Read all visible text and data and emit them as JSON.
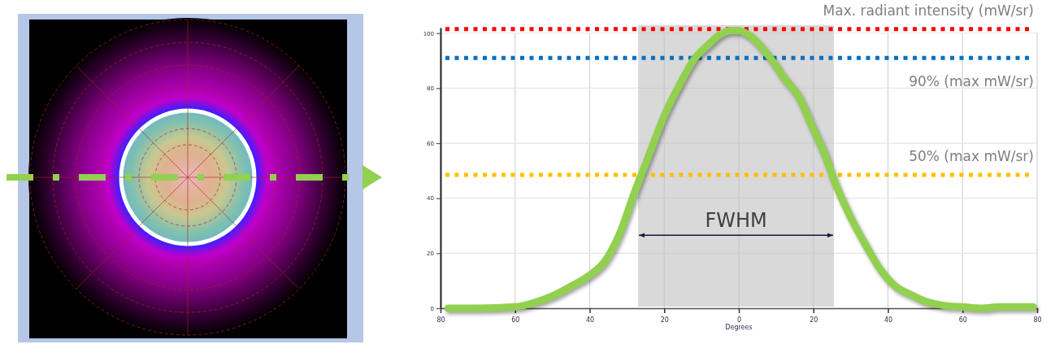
{
  "chart_data": {
    "type": "line",
    "x": [
      -78,
      -70,
      -60,
      -55,
      -50,
      -45,
      -40,
      -36,
      -32,
      -28,
      -24,
      -20,
      -16,
      -12,
      -8,
      -5,
      -2,
      0,
      3,
      6,
      9,
      12,
      16,
      20,
      23,
      26,
      30,
      34,
      38,
      42,
      46,
      50,
      55,
      60,
      65,
      70,
      75,
      79
    ],
    "series": [
      {
        "color": "#92d050",
        "values": [
          0,
          0,
          0.5,
          2,
          4.5,
          8,
          12,
          17,
          27,
          42,
          56,
          70,
          81,
          90.5,
          96,
          99.5,
          101,
          101,
          99,
          95,
          90,
          84,
          77,
          65,
          56,
          45,
          33,
          23,
          14,
          8,
          5,
          2.5,
          1,
          0.5,
          0,
          0.5,
          0.5,
          0.5
        ]
      }
    ],
    "xlim": [
      -80,
      80
    ],
    "ylim": [
      0,
      102
    ],
    "xticks": [
      {
        "value": -80,
        "label": "80"
      },
      {
        "value": -60,
        "label": "60"
      },
      {
        "value": -40,
        "label": "40"
      },
      {
        "value": -20,
        "label": "20"
      },
      0,
      20,
      40,
      60,
      80
    ],
    "yticks": [
      0,
      20,
      40,
      60,
      80,
      100
    ],
    "xlabel": "Degrees",
    "grid": true,
    "ref_lines": [
      {
        "axis": "y",
        "value": 101.5,
        "label": "Max. radiant intensity (mW/sr)",
        "color": "#ff0000",
        "line_style": "dotted"
      },
      {
        "axis": "y",
        "value": 91,
        "label": "90% (max mW/sr)",
        "color": "#0070c0",
        "line_style": "dotted"
      },
      {
        "axis": "y",
        "value": 48.5,
        "label": "50% (max mW/sr)",
        "color": "#ffc000",
        "line_style": "dotted"
      }
    ],
    "bands": [
      {
        "axis": "x",
        "from": -27,
        "to": 25.5,
        "label": "FWHM",
        "color": "#d9d9d9"
      }
    ]
  }
}
